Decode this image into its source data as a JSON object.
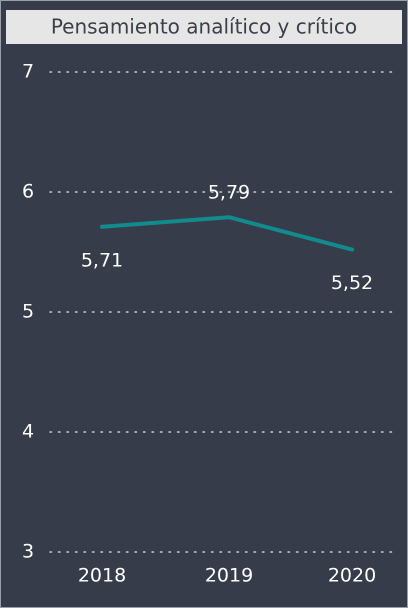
{
  "chart_data": {
    "type": "line",
    "title": "Pensamiento analítico y crítico",
    "categories": [
      "2018",
      "2019",
      "2020"
    ],
    "values": [
      5.71,
      5.79,
      5.52
    ],
    "value_labels": [
      "5,71",
      "5,79",
      "5,52"
    ],
    "color": "#118b8b",
    "ylim": [
      3,
      7
    ],
    "yticks": [
      3,
      4,
      5,
      6,
      7
    ],
    "grid": true
  }
}
